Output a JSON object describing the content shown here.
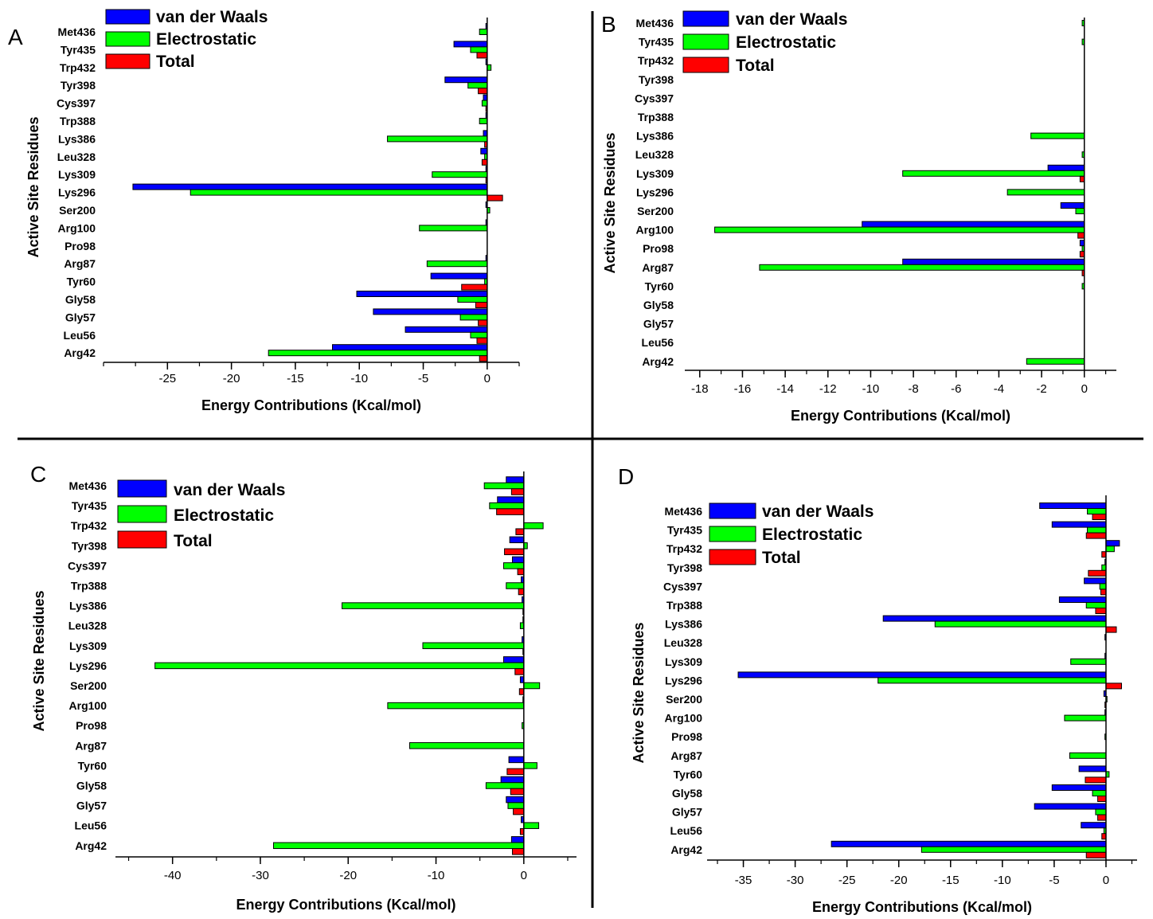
{
  "figure": {
    "colors": {
      "vdw": "#0000ff",
      "elec": "#00ff00",
      "total": "#ff0000",
      "outline": "#000000"
    }
  },
  "chart_data": [
    {
      "type": "bar",
      "panel_label": "A",
      "orientation": "horizontal",
      "categories": [
        "Met436",
        "Tyr435",
        "Trp432",
        "Tyr398",
        "Cys397",
        "Trp388",
        "Lys386",
        "Leu328",
        "Lys309",
        "Lys296",
        "Ser200",
        "Arg100",
        "Pro98",
        "Arg87",
        "Tyr60",
        "Gly58",
        "Gly57",
        "Leu56",
        "Arg42"
      ],
      "series": [
        {
          "name": "van der Waals",
          "values": [
            -0.1,
            -2.6,
            -0.1,
            -3.3,
            -0.3,
            -0.1,
            -0.3,
            -0.5,
            -0.1,
            -27.7,
            -0.1,
            -0.1,
            0,
            -0.1,
            -4.4,
            -10.2,
            -8.9,
            -6.4,
            -12.1
          ]
        },
        {
          "name": "Electrostatic",
          "values": [
            -0.6,
            -1.3,
            0.3,
            -1.5,
            -0.4,
            -0.6,
            -7.8,
            -0.2,
            -4.3,
            -23.2,
            0.2,
            -5.3,
            0,
            -4.7,
            -0.2,
            -2.3,
            -2.1,
            -1.3,
            -17.1
          ]
        },
        {
          "name": "Total",
          "values": [
            0,
            -0.8,
            0,
            -0.7,
            -0.1,
            0,
            -0.2,
            -0.4,
            -0.1,
            1.2,
            0,
            0,
            0,
            0,
            -2.0,
            -0.9,
            -0.7,
            -0.8,
            -0.6
          ]
        }
      ],
      "xlabel": "Energy Contributions (Kcal/mol)",
      "ylabel": "Active Site Residues",
      "xlim": [
        -30,
        2.5
      ],
      "xticks": [
        -25,
        -20,
        -15,
        -10,
        -5,
        0
      ],
      "legend_position": "top-left",
      "grid": false
    },
    {
      "type": "bar",
      "panel_label": "B",
      "orientation": "horizontal",
      "categories": [
        "Met436",
        "Tyr435",
        "Trp432",
        "Tyr398",
        "Cys397",
        "Trp388",
        "Lys386",
        "Leu328",
        "Lys309",
        "Lys296",
        "Ser200",
        "Arg100",
        "Pro98",
        "Arg87",
        "Tyr60",
        "Gly58",
        "Gly57",
        "Leu56",
        "Arg42"
      ],
      "series": [
        {
          "name": "van der Waals",
          "values": [
            0,
            0,
            0,
            0,
            0,
            0,
            0,
            0,
            -1.7,
            0,
            -1.1,
            -10.4,
            -0.2,
            -8.5,
            0,
            0,
            0,
            0,
            0
          ]
        },
        {
          "name": "Electrostatic",
          "values": [
            -0.1,
            -0.1,
            0,
            0,
            0,
            0,
            -2.5,
            -0.1,
            -8.5,
            -3.6,
            -0.4,
            -17.3,
            -0.1,
            -15.2,
            -0.1,
            0,
            0,
            0,
            -2.7
          ]
        },
        {
          "name": "Total",
          "values": [
            0,
            0,
            0,
            0,
            0,
            0,
            0,
            0,
            -0.2,
            0,
            0,
            -0.3,
            -0.2,
            -0.1,
            0,
            0,
            0,
            0,
            0
          ]
        }
      ],
      "xlabel": "Energy Contributions (Kcal/mol)",
      "ylabel": "Active Site Residues",
      "xlim": [
        -18.7,
        1.5
      ],
      "xticks": [
        -18,
        -16,
        -14,
        -12,
        -10,
        -8,
        -6,
        -4,
        -2,
        0
      ],
      "legend_position": "top-left",
      "grid": false
    },
    {
      "type": "bar",
      "panel_label": "C",
      "orientation": "horizontal",
      "categories": [
        "Met436",
        "Tyr435",
        "Trp432",
        "Tyr398",
        "Cys397",
        "Trp388",
        "Lys386",
        "Leu328",
        "Lys309",
        "Lys296",
        "Ser200",
        "Arg100",
        "Pro98",
        "Arg87",
        "Tyr60",
        "Gly58",
        "Gly57",
        "Leu56",
        "Arg42"
      ],
      "series": [
        {
          "name": "van der Waals",
          "values": [
            -2.0,
            -3.0,
            0,
            -1.6,
            -1.3,
            -0.3,
            -0.2,
            -0.1,
            -0.2,
            -2.3,
            -0.4,
            -0.1,
            0,
            0,
            -1.7,
            -2.6,
            -2.0,
            -0.3,
            -1.4
          ]
        },
        {
          "name": "Electrostatic",
          "values": [
            -4.5,
            -3.9,
            2.2,
            0.4,
            -2.3,
            -2.0,
            -20.7,
            -0.4,
            -11.5,
            -42.0,
            1.8,
            -15.5,
            -0.2,
            -13.0,
            1.5,
            -4.3,
            -1.8,
            1.7,
            -28.5
          ]
        },
        {
          "name": "Total",
          "values": [
            -1.4,
            -3.1,
            -0.9,
            -2.2,
            -0.7,
            -0.6,
            -0.1,
            0,
            -0.1,
            -1.0,
            -0.5,
            0,
            0,
            0,
            -1.9,
            -1.5,
            -1.2,
            -0.4,
            -1.3
          ]
        }
      ],
      "xlabel": "Energy Contributions (Kcal/mol)",
      "ylabel": "Active Site Residues",
      "xlim": [
        -46.5,
        6.0
      ],
      "xticks": [
        -40,
        -30,
        -20,
        -10,
        0
      ],
      "legend_position": "top-left",
      "grid": false
    },
    {
      "type": "bar",
      "panel_label": "D",
      "orientation": "horizontal",
      "categories": [
        "Met436",
        "Tyr435",
        "Trp432",
        "Tyr398",
        "Cys397",
        "Trp388",
        "Lys386",
        "Leu328",
        "Lys309",
        "Lys296",
        "Ser200",
        "Arg100",
        "Pro98",
        "Arg87",
        "Tyr60",
        "Gly58",
        "Gly57",
        "Leu56",
        "Arg42"
      ],
      "series": [
        {
          "name": "van der Waals",
          "values": [
            -6.4,
            -5.2,
            1.3,
            -0.1,
            -2.1,
            -4.5,
            -21.5,
            -0.1,
            -0.1,
            -35.5,
            -0.2,
            -0.1,
            0,
            0,
            -2.6,
            -5.2,
            -6.9,
            -2.4,
            -26.5
          ]
        },
        {
          "name": "Electrostatic",
          "values": [
            -1.8,
            -1.8,
            0.8,
            -0.4,
            -0.6,
            -1.9,
            -16.5,
            0,
            -3.4,
            -22.0,
            0.1,
            -4.0,
            -0.1,
            -3.5,
            0.3,
            -1.3,
            -1.0,
            -0.2,
            -17.8
          ]
        },
        {
          "name": "Total",
          "values": [
            -1.3,
            -1.9,
            -0.4,
            -1.7,
            -0.5,
            -1.0,
            1.0,
            0,
            0,
            1.5,
            -0.1,
            0,
            0,
            0,
            -2.0,
            -0.8,
            -0.8,
            -0.4,
            -1.9
          ]
        }
      ],
      "xlabel": "Energy Contributions (Kcal/mol)",
      "ylabel": "Active Site Residues",
      "xlim": [
        -38.5,
        3.0
      ],
      "xticks": [
        -35,
        -30,
        -25,
        -20,
        -15,
        -10,
        -5,
        0
      ],
      "legend_position": "top-left",
      "grid": false
    }
  ]
}
